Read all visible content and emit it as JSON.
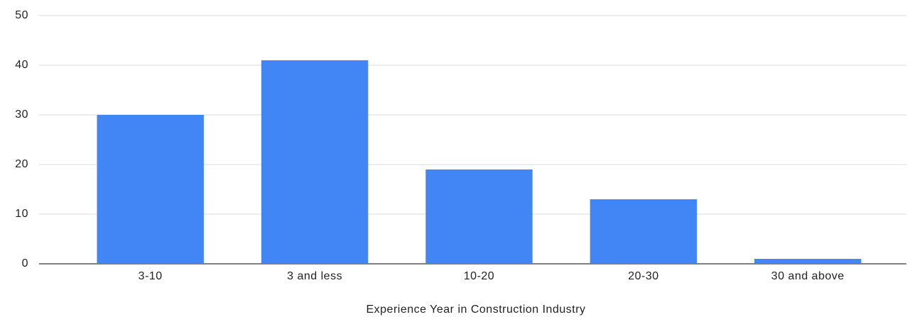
{
  "chart_data": {
    "type": "bar",
    "x_label": "Experience Year in Construction Industry",
    "categories": [
      "3-10",
      "3 and less",
      "10-20",
      "20-30",
      "30 and above"
    ],
    "values": [
      30,
      41,
      19,
      13,
      1
    ],
    "color": "#4285f4",
    "ylim": [
      0,
      50
    ],
    "yticks": [
      0,
      10,
      20,
      30,
      40,
      50
    ],
    "grid": true
  }
}
